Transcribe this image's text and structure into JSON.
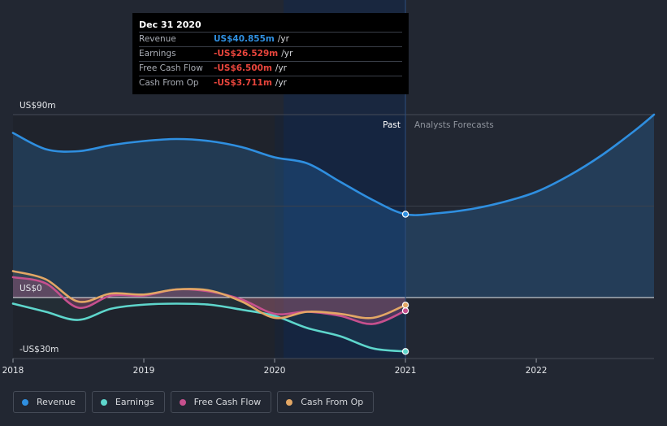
{
  "tooltip": {
    "date": "Dec 31 2020",
    "rows": [
      {
        "label": "Revenue",
        "value": "US$40.855m",
        "unit": "/yr",
        "color": "#2f8fe0"
      },
      {
        "label": "Earnings",
        "value": "-US$26.529m",
        "unit": "/yr",
        "color": "#e8453c"
      },
      {
        "label": "Free Cash Flow",
        "value": "-US$6.500m",
        "unit": "/yr",
        "color": "#e8453c"
      },
      {
        "label": "Cash From Op",
        "value": "-US$3.711m",
        "unit": "/yr",
        "color": "#e8453c"
      }
    ]
  },
  "periods": {
    "past": "Past",
    "forecast": "Analysts Forecasts"
  },
  "legend": [
    {
      "label": "Revenue",
      "color": "#2f8fe0"
    },
    {
      "label": "Earnings",
      "color": "#5ed6cc"
    },
    {
      "label": "Free Cash Flow",
      "color": "#c7508e"
    },
    {
      "label": "Cash From Op",
      "color": "#e3a765"
    }
  ],
  "chart_data": {
    "type": "line",
    "title": "",
    "xlabel": "",
    "ylabel": "",
    "x_ticks": [
      "2018",
      "2019",
      "2020",
      "2021",
      "2022"
    ],
    "y_ticks": [
      "US$90m",
      "US$0",
      "-US$30m"
    ],
    "ylim": [
      -30,
      90
    ],
    "xlim": [
      2018.0,
      2022.9
    ],
    "highlight_x": 2021.0,
    "past_end_x": 2021.0,
    "series": [
      {
        "name": "Revenue",
        "color": "#2f8fe0",
        "x": [
          2018.0,
          2018.25,
          2018.5,
          2018.75,
          2019.0,
          2019.25,
          2019.5,
          2019.75,
          2020.0,
          2020.25,
          2020.5,
          2020.75,
          2021.0,
          2021.25,
          2021.5,
          2021.75,
          2022.0,
          2022.25,
          2022.5,
          2022.75,
          2022.9
        ],
        "values": [
          81,
          73,
          72,
          75,
          77,
          78,
          77,
          74,
          69,
          66,
          57,
          48,
          41,
          41.5,
          43.5,
          47,
          52,
          60,
          70,
          82,
          90
        ]
      },
      {
        "name": "Earnings",
        "color": "#5ed6cc",
        "x": [
          2018.0,
          2018.25,
          2018.5,
          2018.75,
          2019.0,
          2019.25,
          2019.5,
          2019.75,
          2020.0,
          2020.25,
          2020.5,
          2020.75,
          2021.0
        ],
        "values": [
          -3,
          -7,
          -11,
          -5.5,
          -3.5,
          -3,
          -3.5,
          -6,
          -9,
          -15,
          -19,
          -25,
          -26.529
        ]
      },
      {
        "name": "Free Cash Flow",
        "color": "#c7508e",
        "x": [
          2018.0,
          2018.25,
          2018.5,
          2018.75,
          2019.0,
          2019.25,
          2019.5,
          2019.75,
          2020.0,
          2020.25,
          2020.5,
          2020.75,
          2021.0
        ],
        "values": [
          10,
          7,
          -5,
          1,
          1,
          4,
          3,
          -1,
          -8,
          -7,
          -9,
          -13,
          -6.5
        ]
      },
      {
        "name": "Cash From Op",
        "color": "#e3a765",
        "x": [
          2018.0,
          2018.25,
          2018.5,
          2018.75,
          2019.0,
          2019.25,
          2019.5,
          2019.75,
          2020.0,
          2020.25,
          2020.5,
          2020.75,
          2021.0
        ],
        "values": [
          13,
          9,
          -2,
          2,
          1.5,
          4,
          3.5,
          -2,
          -10,
          -7,
          -8,
          -10,
          -3.711
        ]
      }
    ]
  }
}
